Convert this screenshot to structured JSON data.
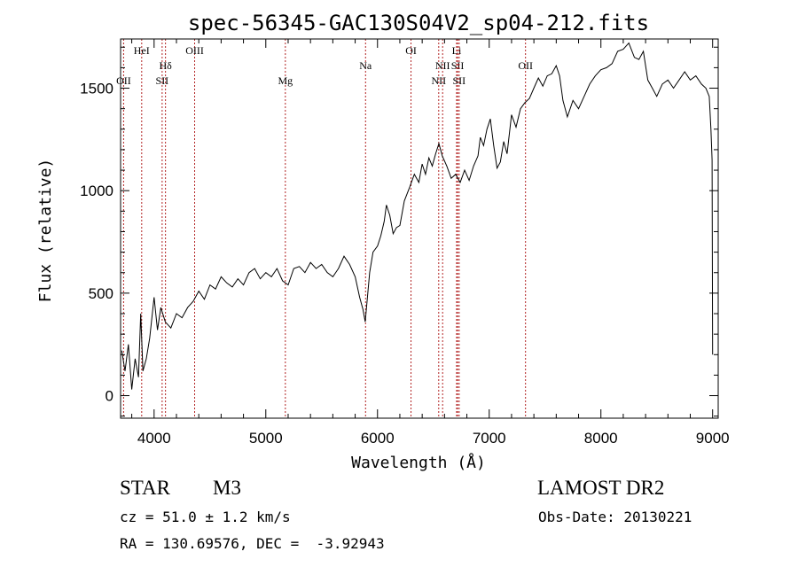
{
  "chart_data": {
    "type": "line",
    "title": "spec-56345-GAC130S04V2_sp04-212.fits",
    "xlabel": "Wavelength (Å)",
    "ylabel": "Flux (relative)",
    "xlim": [
      3700,
      9050
    ],
    "ylim": [
      -110,
      1740
    ],
    "xticks": [
      4000,
      5000,
      6000,
      7000,
      8000,
      9000
    ],
    "yticks": [
      0,
      500,
      1000,
      1500
    ],
    "series": [
      {
        "color": "#000000",
        "x": [
          3710,
          3740,
          3770,
          3800,
          3830,
          3860,
          3880,
          3900,
          3930,
          3960,
          4000,
          4030,
          4060,
          4100,
          4150,
          4200,
          4250,
          4300,
          4350,
          4400,
          4450,
          4500,
          4550,
          4600,
          4650,
          4700,
          4750,
          4800,
          4850,
          4900,
          4950,
          5000,
          5050,
          5100,
          5150,
          5200,
          5250,
          5300,
          5350,
          5400,
          5450,
          5500,
          5550,
          5600,
          5650,
          5700,
          5750,
          5800,
          5840,
          5870,
          5890,
          5910,
          5930,
          5960,
          6000,
          6030,
          6060,
          6080,
          6110,
          6140,
          6170,
          6200,
          6240,
          6290,
          6330,
          6370,
          6400,
          6430,
          6460,
          6490,
          6520,
          6550,
          6580,
          6620,
          6660,
          6700,
          6740,
          6780,
          6820,
          6860,
          6900,
          6920,
          6950,
          6980,
          7010,
          7040,
          7070,
          7100,
          7130,
          7160,
          7200,
          7240,
          7280,
          7320,
          7360,
          7400,
          7440,
          7480,
          7520,
          7560,
          7600,
          7630,
          7660,
          7700,
          7750,
          7800,
          7850,
          7900,
          7950,
          8000,
          8050,
          8100,
          8150,
          8200,
          8250,
          8300,
          8340,
          8380,
          8420,
          8460,
          8500,
          8550,
          8600,
          8650,
          8700,
          8750,
          8800,
          8850,
          8900,
          8940,
          8970,
          8985,
          8995,
          9000
        ],
        "y": [
          220,
          120,
          250,
          30,
          180,
          90,
          400,
          120,
          180,
          280,
          480,
          320,
          430,
          360,
          330,
          400,
          380,
          430,
          460,
          510,
          470,
          540,
          520,
          580,
          550,
          530,
          570,
          540,
          600,
          620,
          570,
          600,
          580,
          620,
          560,
          540,
          620,
          630,
          600,
          650,
          620,
          640,
          600,
          580,
          620,
          680,
          640,
          580,
          480,
          420,
          360,
          480,
          600,
          700,
          730,
          780,
          850,
          930,
          880,
          790,
          820,
          830,
          950,
          1020,
          1080,
          1040,
          1130,
          1080,
          1160,
          1120,
          1180,
          1230,
          1170,
          1120,
          1060,
          1080,
          1040,
          1100,
          1050,
          1120,
          1170,
          1260,
          1220,
          1300,
          1350,
          1220,
          1110,
          1140,
          1240,
          1180,
          1370,
          1310,
          1400,
          1430,
          1450,
          1500,
          1550,
          1510,
          1560,
          1570,
          1610,
          1560,
          1440,
          1360,
          1440,
          1400,
          1460,
          1520,
          1560,
          1590,
          1600,
          1620,
          1680,
          1690,
          1720,
          1650,
          1640,
          1680,
          1540,
          1500,
          1460,
          1520,
          1540,
          1500,
          1540,
          1580,
          1540,
          1560,
          1520,
          1500,
          1460,
          1300,
          1150,
          200
        ]
      }
    ],
    "line_markers": [
      {
        "label": "OII",
        "x": 3727,
        "row": "low"
      },
      {
        "label": "HeI",
        "x": 3889,
        "row": "high"
      },
      {
        "label": "Hδ",
        "x": 4102,
        "row": "mid"
      },
      {
        "label": "SII",
        "x": 4072,
        "row": "low"
      },
      {
        "label": "OIII",
        "x": 4363,
        "row": "high"
      },
      {
        "label": "Mg",
        "x": 5175,
        "row": "low"
      },
      {
        "label": "Na",
        "x": 5893,
        "row": "mid"
      },
      {
        "label": "OI",
        "x": 6300,
        "row": "high"
      },
      {
        "label": "NII",
        "x": 6548,
        "row": "low"
      },
      {
        "label": "NII",
        "x": 6583,
        "row": "mid"
      },
      {
        "label": "Li",
        "x": 6708,
        "row": "high"
      },
      {
        "label": "SII",
        "x": 6717,
        "row": "mid"
      },
      {
        "label": "SII",
        "x": 6731,
        "row": "low"
      },
      {
        "label": "OII",
        "x": 7325,
        "row": "mid"
      }
    ],
    "grid": false,
    "legend": "none"
  },
  "info": {
    "object_class": "STAR",
    "subclass": "M3",
    "survey": "LAMOST DR2",
    "redshift_text": "cz = 51.0 ± 1.2 km/s",
    "obs_date_text": "Obs-Date: 20130221",
    "coords_text": "RA = 130.69576, DEC =  -3.92943"
  }
}
